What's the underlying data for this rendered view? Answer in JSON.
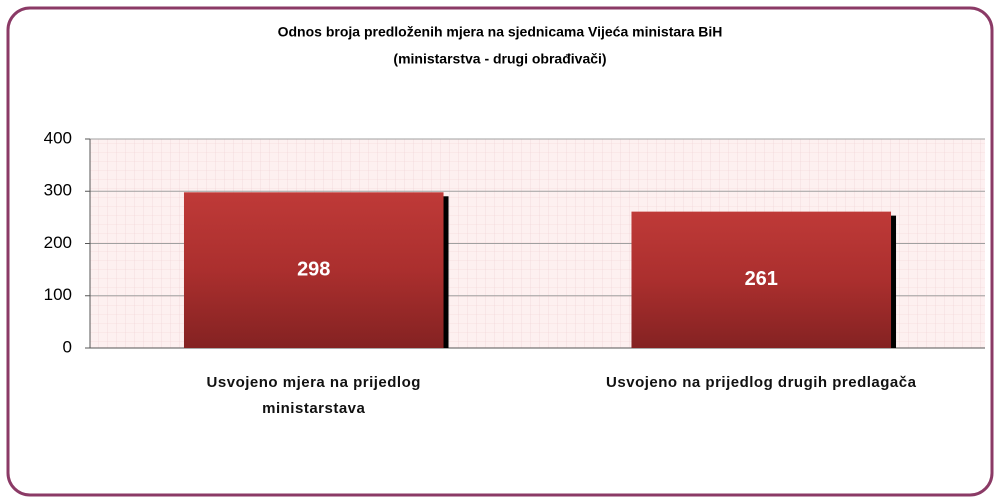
{
  "chart_data": {
    "type": "bar",
    "title": [
      "Odnos broja predloženih mjera na sjednicama Vijeća ministara BiH",
      "(ministarstva - drugi obrađivači)"
    ],
    "categories": [
      "Usvojeno mjera na prijedlog ministarstava",
      "Usvojeno na prijedlog drugih predlagača"
    ],
    "values": [
      298,
      261
    ],
    "color": "#b0302f",
    "ylim": [
      0,
      400
    ],
    "yticks": [
      0,
      100,
      200,
      300,
      400
    ],
    "grid": true
  }
}
